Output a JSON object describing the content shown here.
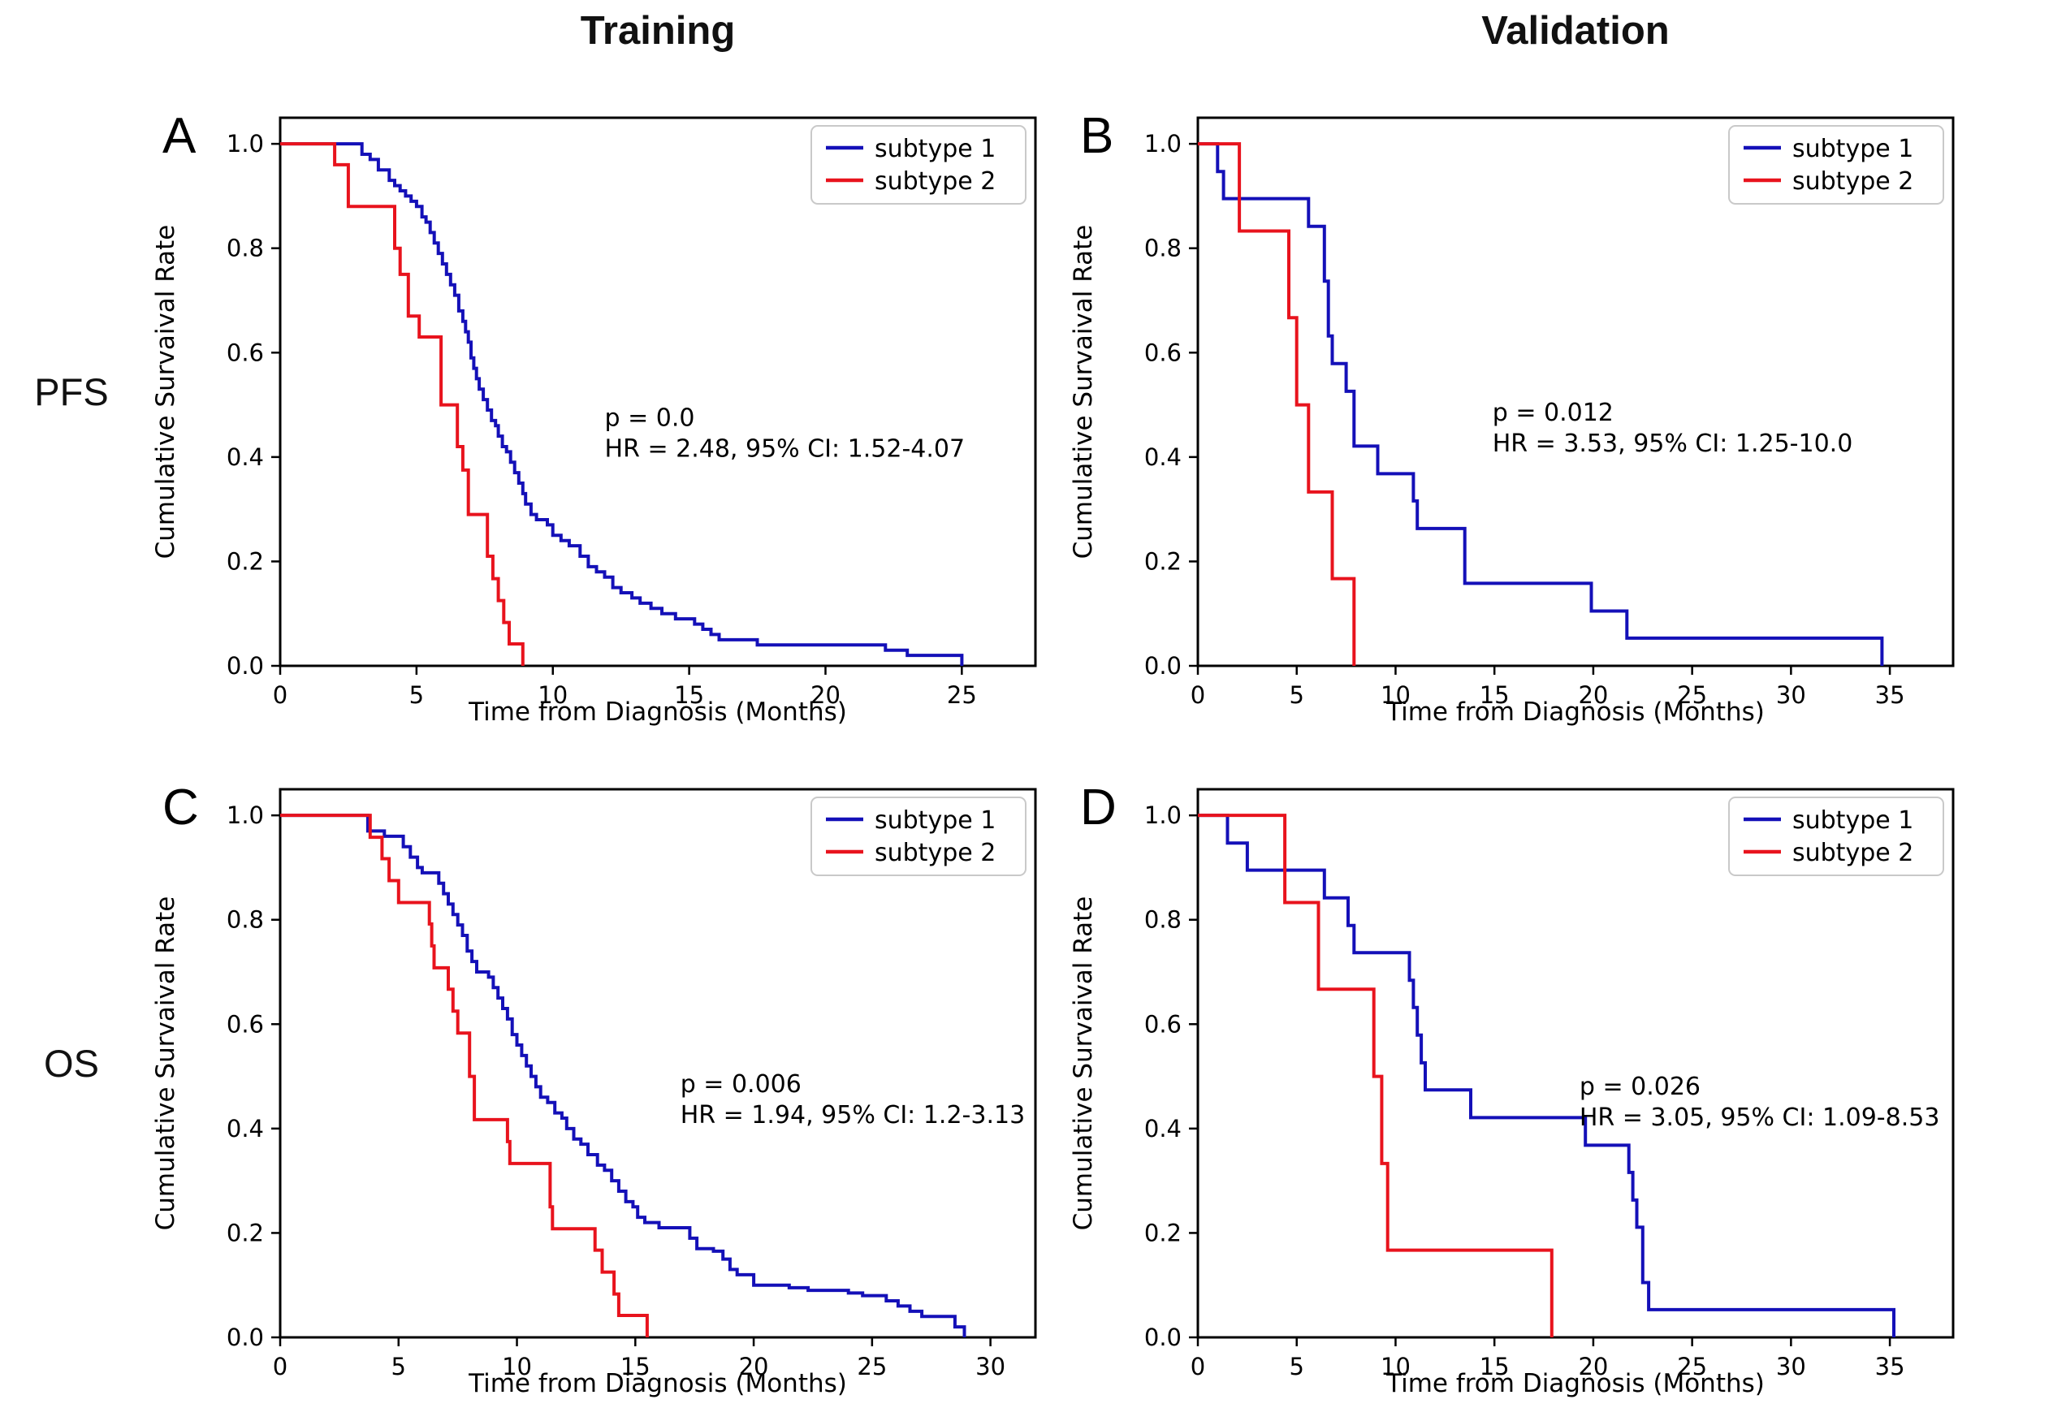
{
  "figure": {
    "column_headers": [
      "Training",
      "Validation"
    ],
    "row_labels": [
      "PFS",
      "OS"
    ]
  },
  "colors": {
    "subtype_1": "#1410b8",
    "subtype_2": "#e8131d",
    "axis": "#000000",
    "legend_border": "#c9c9c9",
    "background": "#ffffff"
  },
  "chart_data": [
    {
      "panel": "A",
      "row": "PFS",
      "column": "Training",
      "type": "line",
      "subtype": "kaplan_meier_step",
      "xlabel": "Time from Diagnosis (Months)",
      "ylabel": "Cumulative Survaival Rate",
      "xlim": [
        0,
        27.7
      ],
      "ylim": [
        0,
        1.05
      ],
      "xticks": [
        0,
        5,
        10,
        15,
        20,
        25
      ],
      "yticks": [
        0.0,
        0.2,
        0.4,
        0.6,
        0.8,
        1.0
      ],
      "grid": false,
      "legend_position": "upper right",
      "annotation": {
        "x": 11.9,
        "y": 0.46,
        "lines": [
          "p = 0.0",
          "HR = 2.48, 95% CI: 1.52-4.07"
        ]
      },
      "series": [
        {
          "name": "subtype 1",
          "color": "#1410b8",
          "x": [
            0,
            3.0,
            3.3,
            3.6,
            4.0,
            4.2,
            4.4,
            4.6,
            4.8,
            5.0,
            5.2,
            5.35,
            5.5,
            5.65,
            5.8,
            5.95,
            6.1,
            6.25,
            6.4,
            6.55,
            6.7,
            6.8,
            6.9,
            7.0,
            7.1,
            7.2,
            7.3,
            7.45,
            7.6,
            7.75,
            7.9,
            8.0,
            8.15,
            8.3,
            8.45,
            8.6,
            8.75,
            8.9,
            9.0,
            9.2,
            9.4,
            9.8,
            10.0,
            10.3,
            10.6,
            11.0,
            11.3,
            11.6,
            11.9,
            12.2,
            12.5,
            12.9,
            13.2,
            13.6,
            14.0,
            14.5,
            15.2,
            15.5,
            15.8,
            16.1,
            17.5,
            22.2,
            23.0,
            25.0
          ],
          "y": [
            1.0,
            0.98,
            0.97,
            0.95,
            0.93,
            0.92,
            0.91,
            0.9,
            0.89,
            0.88,
            0.86,
            0.85,
            0.83,
            0.81,
            0.79,
            0.77,
            0.75,
            0.73,
            0.71,
            0.68,
            0.66,
            0.64,
            0.62,
            0.59,
            0.57,
            0.55,
            0.53,
            0.51,
            0.49,
            0.47,
            0.46,
            0.44,
            0.42,
            0.41,
            0.39,
            0.37,
            0.35,
            0.33,
            0.31,
            0.29,
            0.28,
            0.27,
            0.25,
            0.24,
            0.23,
            0.21,
            0.19,
            0.18,
            0.17,
            0.15,
            0.14,
            0.13,
            0.12,
            0.11,
            0.1,
            0.09,
            0.08,
            0.07,
            0.06,
            0.05,
            0.04,
            0.03,
            0.02,
            0.0
          ]
        },
        {
          "name": "subtype 2",
          "color": "#e8131d",
          "x": [
            0,
            2.0,
            2.5,
            4.2,
            4.4,
            4.7,
            5.1,
            5.9,
            6.5,
            6.7,
            6.9,
            7.6,
            7.8,
            8.0,
            8.2,
            8.4,
            8.9
          ],
          "y": [
            1.0,
            0.96,
            0.88,
            0.8,
            0.75,
            0.67,
            0.63,
            0.5,
            0.42,
            0.375,
            0.29,
            0.21,
            0.167,
            0.125,
            0.083,
            0.042,
            0.0
          ]
        }
      ]
    },
    {
      "panel": "B",
      "row": "PFS",
      "column": "Validation",
      "type": "line",
      "subtype": "kaplan_meier_step",
      "xlabel": "Time from Diagnosis (Months)",
      "ylabel": "Cumulative Survaival Rate",
      "xlim": [
        0,
        38.2
      ],
      "ylim": [
        0,
        1.05
      ],
      "xticks": [
        0,
        5,
        10,
        15,
        20,
        25,
        30,
        35
      ],
      "yticks": [
        0.0,
        0.2,
        0.4,
        0.6,
        0.8,
        1.0
      ],
      "grid": false,
      "legend_position": "upper right",
      "annotation": {
        "x": 14.9,
        "y": 0.47,
        "lines": [
          "p = 0.012",
          "HR = 3.53, 95% CI: 1.25-10.0"
        ]
      },
      "series": [
        {
          "name": "subtype 1",
          "color": "#1410b8",
          "x": [
            0,
            1.0,
            1.3,
            5.6,
            6.4,
            6.6,
            6.8,
            7.5,
            7.9,
            9.1,
            10.9,
            11.1,
            13.5,
            19.9,
            21.7,
            34.6
          ],
          "y": [
            1.0,
            0.947,
            0.895,
            0.842,
            0.737,
            0.632,
            0.579,
            0.526,
            0.421,
            0.368,
            0.316,
            0.263,
            0.158,
            0.105,
            0.053,
            0.0
          ]
        },
        {
          "name": "subtype 2",
          "color": "#e8131d",
          "x": [
            0,
            2.1,
            4.6,
            5.0,
            5.6,
            6.8,
            7.9
          ],
          "y": [
            1.0,
            0.833,
            0.667,
            0.5,
            0.333,
            0.167,
            0.0
          ]
        }
      ]
    },
    {
      "panel": "C",
      "row": "OS",
      "column": "Training",
      "type": "line",
      "subtype": "kaplan_meier_step",
      "xlabel": "Time from Diagnosis (Months)",
      "ylabel": "Cumulative Survaival Rate",
      "xlim": [
        0,
        31.9
      ],
      "ylim": [
        0,
        1.05
      ],
      "xticks": [
        0,
        5,
        10,
        15,
        20,
        25,
        30
      ],
      "yticks": [
        0.0,
        0.2,
        0.4,
        0.6,
        0.8,
        1.0
      ],
      "grid": false,
      "legend_position": "upper right",
      "annotation": {
        "x": 16.9,
        "y": 0.47,
        "lines": [
          "p = 0.006",
          "HR = 1.94, 95% CI: 1.2-3.13"
        ]
      },
      "series": [
        {
          "name": "subtype 1",
          "color": "#1410b8",
          "x": [
            0,
            3.7,
            4.4,
            5.2,
            5.5,
            5.8,
            6.0,
            6.7,
            6.9,
            7.1,
            7.3,
            7.5,
            7.7,
            7.9,
            8.1,
            8.3,
            8.8,
            9.0,
            9.2,
            9.4,
            9.6,
            9.8,
            10.0,
            10.2,
            10.4,
            10.6,
            10.8,
            11.0,
            11.3,
            11.6,
            11.9,
            12.1,
            12.4,
            12.7,
            13.0,
            13.4,
            13.7,
            14.0,
            14.3,
            14.6,
            14.9,
            15.1,
            15.4,
            16.0,
            17.3,
            17.6,
            18.3,
            18.7,
            19.0,
            19.3,
            20.0,
            21.5,
            22.3,
            24.0,
            24.6,
            25.6,
            26.1,
            26.6,
            27.1,
            28.5,
            28.9
          ],
          "y": [
            1.0,
            0.97,
            0.96,
            0.94,
            0.92,
            0.9,
            0.89,
            0.87,
            0.85,
            0.83,
            0.81,
            0.79,
            0.77,
            0.74,
            0.72,
            0.7,
            0.69,
            0.67,
            0.65,
            0.63,
            0.61,
            0.58,
            0.56,
            0.54,
            0.52,
            0.5,
            0.48,
            0.46,
            0.45,
            0.43,
            0.42,
            0.4,
            0.38,
            0.37,
            0.35,
            0.33,
            0.32,
            0.3,
            0.28,
            0.26,
            0.25,
            0.23,
            0.22,
            0.21,
            0.19,
            0.17,
            0.165,
            0.15,
            0.13,
            0.12,
            0.1,
            0.095,
            0.09,
            0.085,
            0.08,
            0.07,
            0.06,
            0.05,
            0.04,
            0.02,
            0.0
          ]
        },
        {
          "name": "subtype 2",
          "color": "#e8131d",
          "x": [
            0,
            3.8,
            4.3,
            4.6,
            5.0,
            6.3,
            6.4,
            6.5,
            7.1,
            7.3,
            7.5,
            8.0,
            8.2,
            9.6,
            9.7,
            11.4,
            11.5,
            13.3,
            13.6,
            14.1,
            14.3,
            15.5
          ],
          "y": [
            1.0,
            0.958,
            0.917,
            0.875,
            0.833,
            0.792,
            0.75,
            0.708,
            0.667,
            0.625,
            0.583,
            0.5,
            0.417,
            0.375,
            0.333,
            0.25,
            0.208,
            0.167,
            0.125,
            0.083,
            0.042,
            0.0
          ]
        }
      ]
    },
    {
      "panel": "D",
      "row": "OS",
      "column": "Validation",
      "type": "line",
      "subtype": "kaplan_meier_step",
      "xlabel": "Time from Diagnosis (Months)",
      "ylabel": "Cumulative Survaival Rate",
      "xlim": [
        0,
        38.2
      ],
      "ylim": [
        0,
        1.05
      ],
      "xticks": [
        0,
        5,
        10,
        15,
        20,
        25,
        30,
        35
      ],
      "yticks": [
        0.0,
        0.2,
        0.4,
        0.6,
        0.8,
        1.0
      ],
      "grid": false,
      "legend_position": "upper right",
      "annotation": {
        "x": 19.3,
        "y": 0.465,
        "lines": [
          "p = 0.026",
          "HR = 3.05, 95% CI: 1.09-8.53"
        ]
      },
      "series": [
        {
          "name": "subtype 1",
          "color": "#1410b8",
          "x": [
            0,
            1.5,
            2.5,
            6.4,
            7.6,
            7.9,
            10.7,
            10.9,
            11.1,
            11.3,
            11.5,
            13.8,
            19.6,
            21.8,
            22.0,
            22.2,
            22.5,
            22.8,
            35.2
          ],
          "y": [
            1.0,
            0.947,
            0.895,
            0.842,
            0.789,
            0.737,
            0.684,
            0.632,
            0.579,
            0.526,
            0.474,
            0.421,
            0.368,
            0.316,
            0.263,
            0.211,
            0.105,
            0.053,
            0.0
          ]
        },
        {
          "name": "subtype 2",
          "color": "#e8131d",
          "x": [
            0,
            4.4,
            6.1,
            8.9,
            9.3,
            9.6,
            17.9
          ],
          "y": [
            1.0,
            0.833,
            0.667,
            0.5,
            0.333,
            0.167,
            0.0
          ]
        }
      ]
    }
  ]
}
